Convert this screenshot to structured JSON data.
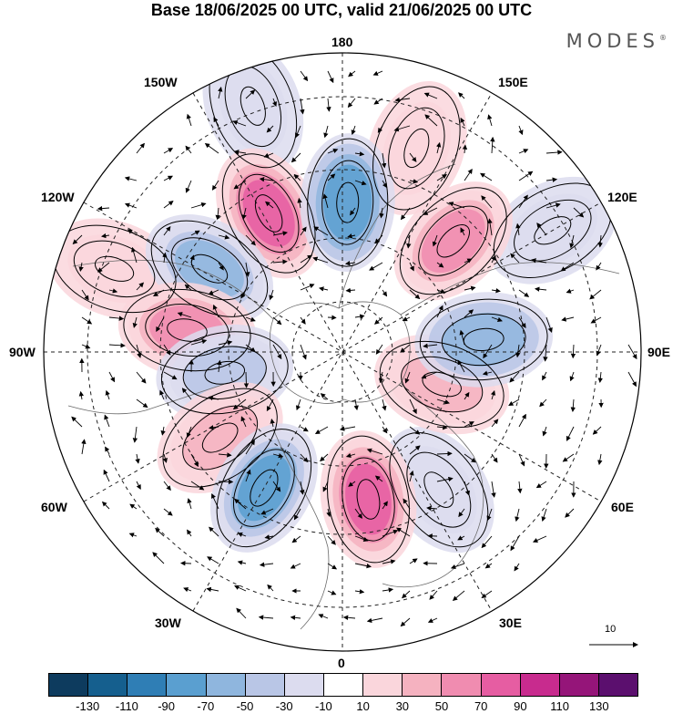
{
  "title": "Base 18/06/2025 00 UTC, valid 21/06/2025 00 UTC",
  "brand": "MODES",
  "brand_mark": "®",
  "longitude_labels": {
    "top": "180",
    "bottom": "0",
    "left": "90W",
    "right": "90E",
    "upper_left_150": "150W",
    "upper_left_120": "120W",
    "upper_right_150": "150E",
    "upper_right_120": "120E",
    "lower_left_60": "60W",
    "lower_left_30": "30W",
    "lower_right_60": "60E",
    "lower_right_30": "30E"
  },
  "vector_scale": "10",
  "colorbar": {
    "colors": [
      "#0d3b5e",
      "#155f8e",
      "#2f7eb5",
      "#5a9fd0",
      "#8fb6de",
      "#b9c6e6",
      "#dcdcef",
      "#ffffff",
      "#fad6dc",
      "#f5b2c0",
      "#f08cb0",
      "#e65da2",
      "#c82b8e",
      "#951579",
      "#5b0f6e"
    ],
    "ticks": [
      "-130",
      "-110",
      "-90",
      "-70",
      "-50",
      "-30",
      "-10",
      "10",
      "30",
      "50",
      "70",
      "90",
      "110",
      "130"
    ]
  },
  "anomaly_centers": [
    {
      "lon": 178,
      "lat": 50,
      "value": -70
    },
    {
      "lon": 135,
      "lat": 48,
      "value": 70
    },
    {
      "lon": 160,
      "lat": 32,
      "value": 20
    },
    {
      "lon": 95,
      "lat": 52,
      "value": -50
    },
    {
      "lon": 120,
      "lat": 25,
      "value": -20
    },
    {
      "lon": 72,
      "lat": 62,
      "value": 40
    },
    {
      "lon": 10,
      "lat": 50,
      "value": 80
    },
    {
      "lon": 35,
      "lat": 45,
      "value": -20
    },
    {
      "lon": 330,
      "lat": 48,
      "value": -85
    },
    {
      "lon": 305,
      "lat": 50,
      "value": 40
    },
    {
      "lon": 280,
      "lat": 58,
      "value": -40
    },
    {
      "lon": 262,
      "lat": 48,
      "value": 70
    },
    {
      "lon": 238,
      "lat": 48,
      "value": -60
    },
    {
      "lon": 208,
      "lat": 48,
      "value": 80
    },
    {
      "lon": 250,
      "lat": 25,
      "value": 15
    },
    {
      "lon": 200,
      "lat": 20,
      "value": -15
    }
  ]
}
